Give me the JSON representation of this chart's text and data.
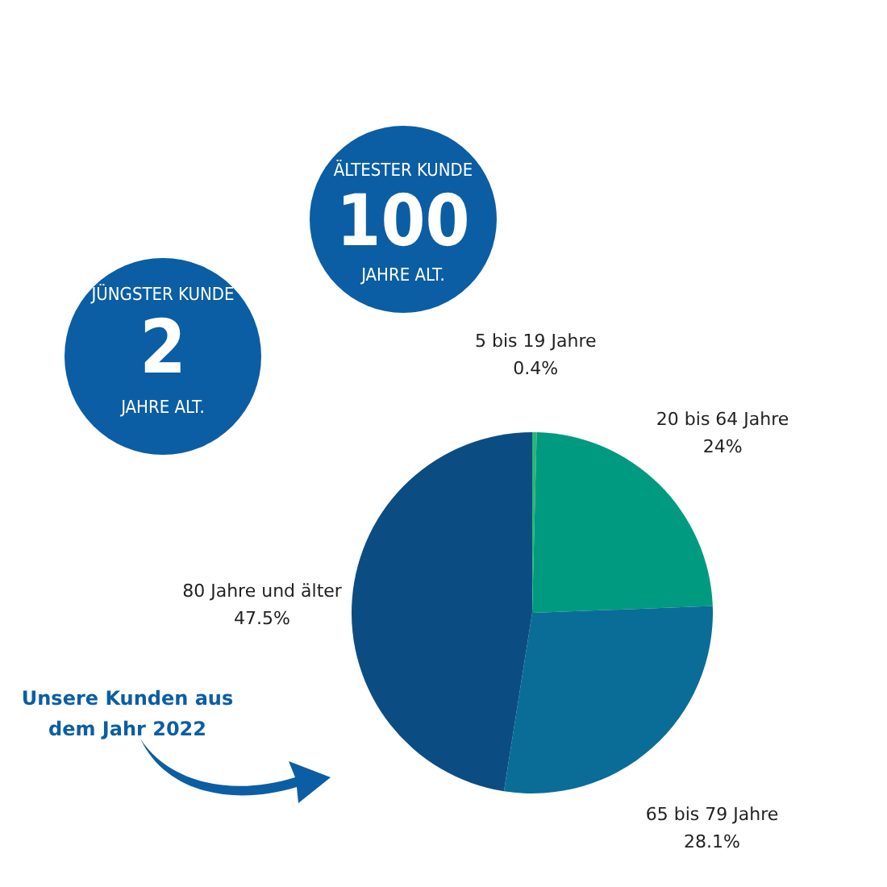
{
  "chart_data": {
    "type": "pie",
    "categories": [
      "5 bis 19 Jahre",
      "20 bis 64 Jahre",
      "65 bis 79 Jahre",
      "80 Jahre und älter"
    ],
    "values": [
      0.4,
      24,
      28.1,
      47.5
    ],
    "colors": [
      "#2bb673",
      "#009a80",
      "#0a6d97",
      "#0b4d83"
    ],
    "value_labels": [
      "0.4%",
      "24%",
      "28.1%",
      "47.5%"
    ],
    "annotations": [
      "Unsere Kunden aus dem Jahr 2022",
      "JÜNGSTER KUNDE",
      "2",
      "JAHRE ALT.",
      "ÄLTESTER KUNDE",
      "100",
      "JAHRE ALT."
    ]
  }
}
